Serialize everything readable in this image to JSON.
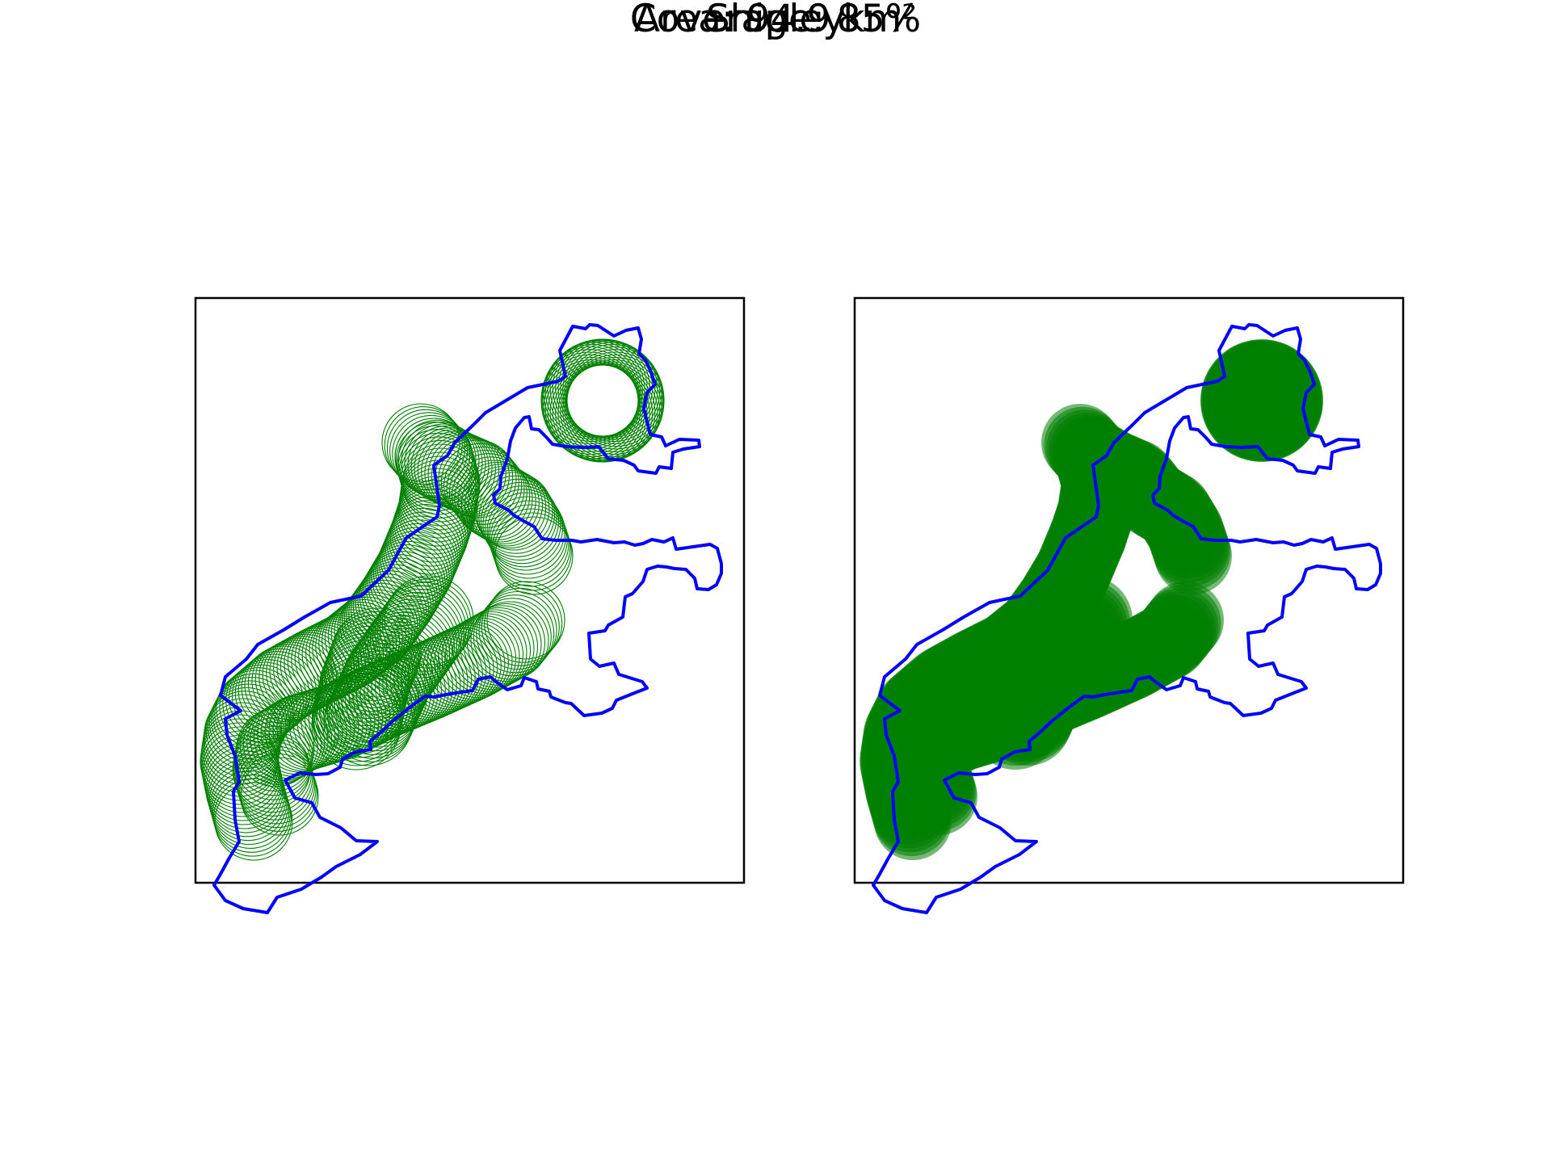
{
  "title": "Shipley",
  "coverage_label": "Coverage: 85%",
  "area_label": "Area: 94.9 km²",
  "stats": {
    "coverage_percent": 85,
    "area_km2": 94.9
  },
  "colors": {
    "boundary": "#0000ff",
    "coverage": "#008000",
    "frame": "#000000",
    "background": "#ffffff"
  },
  "panels": [
    {
      "name": "outline-circles",
      "style": "outline"
    },
    {
      "name": "filled-circles",
      "style": "filled"
    }
  ]
}
